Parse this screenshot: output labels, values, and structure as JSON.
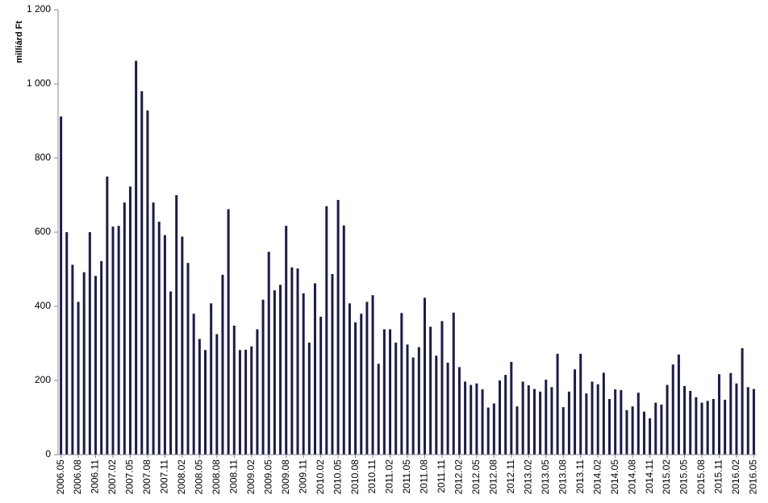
{
  "chart_data": {
    "type": "bar",
    "ylabel": "milliárd Ft",
    "ylim": [
      0,
      1200
    ],
    "yticks": [
      0,
      200,
      400,
      600,
      800,
      1000,
      1200
    ],
    "ytick_labels": [
      "0",
      "200",
      "400",
      "600",
      "800",
      "1 000",
      "1 200"
    ],
    "grid": false,
    "bar_color": "#1c1c4c",
    "x_start": "2006.05",
    "tick_every": 3,
    "categories": [
      "2006.05",
      "2006.06",
      "2006.07",
      "2006.08",
      "2006.09",
      "2006.10",
      "2006.11",
      "2006.12",
      "2007.01",
      "2007.02",
      "2007.03",
      "2007.04",
      "2007.05",
      "2007.06",
      "2007.07",
      "2007.08",
      "2007.09",
      "2007.10",
      "2007.11",
      "2007.12",
      "2008.01",
      "2008.02",
      "2008.03",
      "2008.04",
      "2008.05",
      "2008.06",
      "2008.07",
      "2008.08",
      "2008.09",
      "2008.10",
      "2008.11",
      "2008.12",
      "2009.01",
      "2009.02",
      "2009.03",
      "2009.04",
      "2009.05",
      "2009.06",
      "2009.07",
      "2009.08",
      "2009.09",
      "2009.10",
      "2009.11",
      "2009.12",
      "2010.01",
      "2010.02",
      "2010.03",
      "2010.04",
      "2010.05",
      "2010.06",
      "2010.07",
      "2010.08",
      "2010.09",
      "2010.10",
      "2010.11",
      "2010.12",
      "2011.01",
      "2011.02",
      "2011.03",
      "2011.04",
      "2011.05",
      "2011.06",
      "2011.07",
      "2011.08",
      "2011.09",
      "2011.10",
      "2011.11",
      "2011.12",
      "2012.01",
      "2012.02",
      "2012.03",
      "2012.04",
      "2012.05",
      "2012.06",
      "2012.07",
      "2012.08",
      "2012.09",
      "2012.10",
      "2012.11",
      "2012.12",
      "2013.01",
      "2013.02",
      "2013.03",
      "2013.04",
      "2013.05",
      "2013.06",
      "2013.07",
      "2013.08",
      "2013.09",
      "2013.10",
      "2013.11",
      "2013.12",
      "2014.01",
      "2014.02",
      "2014.03",
      "2014.04",
      "2014.05",
      "2014.06",
      "2014.07",
      "2014.08",
      "2014.09",
      "2014.10",
      "2014.11",
      "2014.12",
      "2015.01",
      "2015.02",
      "2015.03",
      "2015.04",
      "2015.05",
      "2015.06",
      "2015.07",
      "2015.08",
      "2015.09",
      "2015.10",
      "2015.11",
      "2015.12",
      "2016.01",
      "2016.02",
      "2016.03",
      "2016.04",
      "2016.05"
    ],
    "values": [
      912,
      600,
      512,
      412,
      492,
      600,
      482,
      522,
      750,
      615,
      617,
      680,
      723,
      1062,
      980,
      928,
      680,
      628,
      592,
      440,
      700,
      588,
      517,
      380,
      312,
      282,
      408,
      325,
      485,
      662,
      348,
      282,
      283,
      292,
      338,
      418,
      547,
      443,
      458,
      617,
      505,
      502,
      435,
      302,
      462,
      372,
      670,
      487,
      687,
      618,
      408,
      357,
      380,
      412,
      430,
      245,
      338,
      338,
      302,
      382,
      297,
      262,
      290,
      423,
      345,
      267,
      360,
      248,
      383,
      236,
      197,
      188,
      192,
      176,
      127,
      138,
      200,
      215,
      250,
      130,
      197,
      187,
      177,
      170,
      202,
      182,
      272,
      128,
      170,
      230,
      272,
      165,
      197,
      190,
      221,
      150,
      176,
      174,
      120,
      130,
      167,
      116,
      98,
      140,
      135,
      188,
      243,
      270,
      185,
      172,
      155,
      140,
      145,
      150,
      217,
      148,
      220,
      192,
      287,
      182,
      177
    ]
  }
}
